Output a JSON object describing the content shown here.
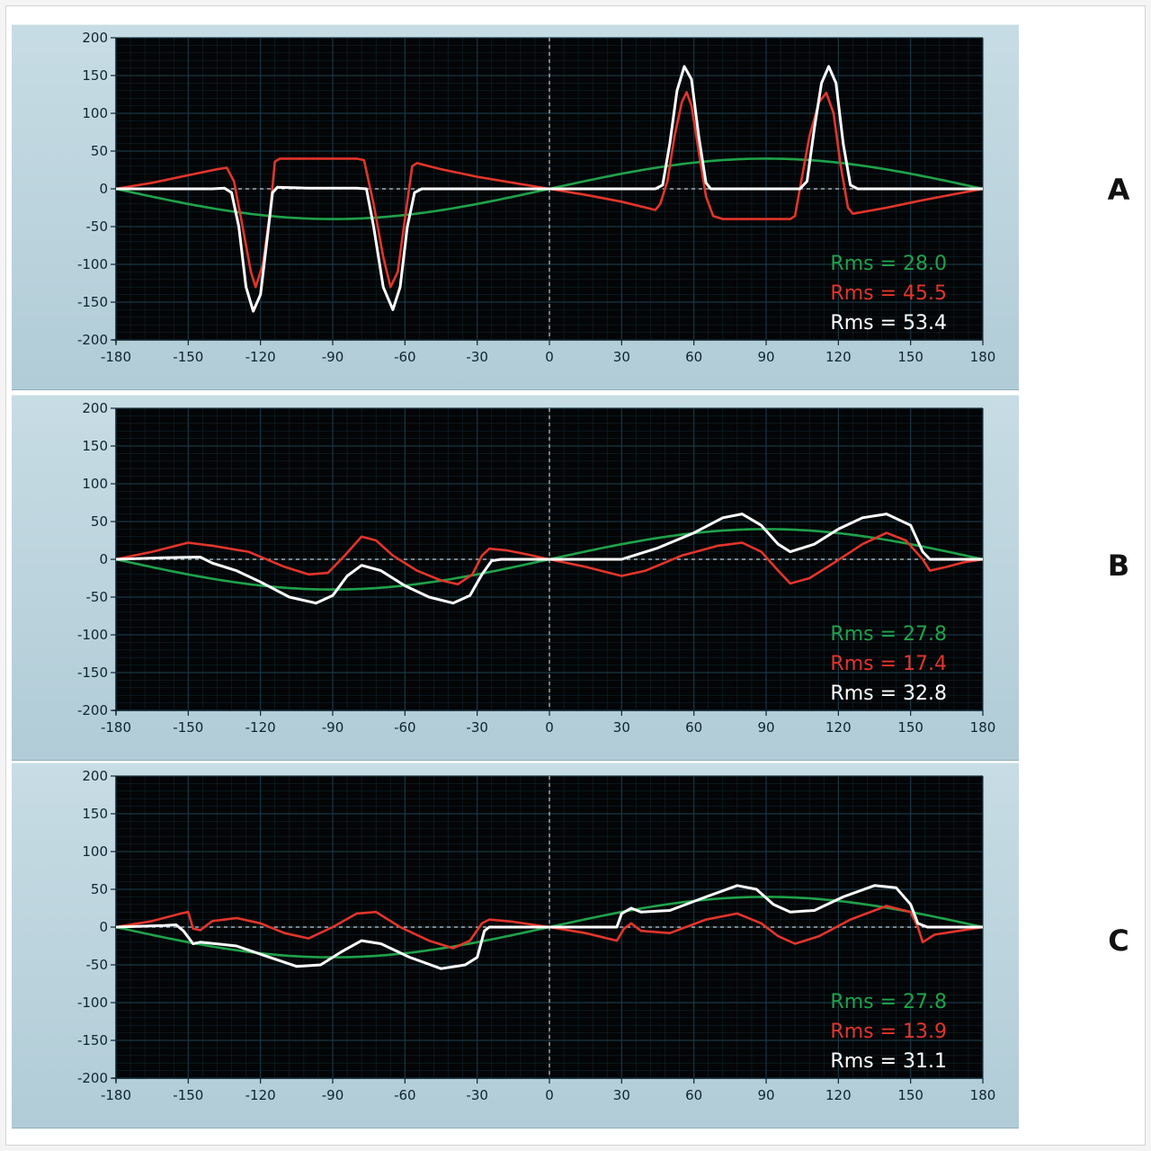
{
  "colors": {
    "page_bg": "#f4f4f4",
    "panel_bg": "#bad3dd",
    "plot_bg": "#030507",
    "grid": "#1b3a47",
    "zero_line": "#c8c8c8",
    "green": "#1fa24a",
    "red": "#e3352b",
    "white": "#ffffff"
  },
  "chart_data": [
    {
      "type": "line",
      "panel_label": "A",
      "xlim": [
        -180,
        180
      ],
      "ylim": [
        -200,
        200
      ],
      "x_ticks": [
        -180,
        -150,
        -120,
        -90,
        -60,
        -30,
        0,
        30,
        60,
        90,
        120,
        150,
        180
      ],
      "y_ticks": [
        200,
        150,
        100,
        50,
        0,
        -50,
        -100,
        -150,
        -200
      ],
      "grid": true,
      "reference_lines": [
        "y=0 dashed",
        "x=0 dashed"
      ],
      "series": [
        {
          "color": "green",
          "shape": "sine",
          "amplitude": 40,
          "legend": "Rms = 28.0"
        },
        {
          "color": "red",
          "legend": "Rms = 45.5",
          "points": [
            [
              -180,
              0
            ],
            [
              -165,
              8
            ],
            [
              -150,
              18
            ],
            [
              -138,
              26
            ],
            [
              -134,
              28
            ],
            [
              -131,
              10
            ],
            [
              -128,
              -40
            ],
            [
              -124,
              -110
            ],
            [
              -122,
              -130
            ],
            [
              -119,
              -100
            ],
            [
              -116,
              -30
            ],
            [
              -114,
              36
            ],
            [
              -112,
              40
            ],
            [
              -100,
              40
            ],
            [
              -80,
              40
            ],
            [
              -77,
              38
            ],
            [
              -73,
              -20
            ],
            [
              -69,
              -90
            ],
            [
              -66,
              -130
            ],
            [
              -63,
              -110
            ],
            [
              -60,
              -40
            ],
            [
              -57,
              30
            ],
            [
              -55,
              34
            ],
            [
              -45,
              26
            ],
            [
              -30,
              16
            ],
            [
              -15,
              8
            ],
            [
              0,
              0
            ],
            [
              15,
              -8
            ],
            [
              30,
              -17
            ],
            [
              44,
              -28
            ],
            [
              46,
              -20
            ],
            [
              49,
              10
            ],
            [
              52,
              70
            ],
            [
              55,
              115
            ],
            [
              57,
              128
            ],
            [
              59,
              110
            ],
            [
              62,
              50
            ],
            [
              65,
              -10
            ],
            [
              68,
              -36
            ],
            [
              72,
              -40
            ],
            [
              90,
              -40
            ],
            [
              100,
              -40
            ],
            [
              102,
              -36
            ],
            [
              104,
              0
            ],
            [
              108,
              70
            ],
            [
              112,
              115
            ],
            [
              115,
              127
            ],
            [
              118,
              100
            ],
            [
              121,
              30
            ],
            [
              124,
              -25
            ],
            [
              126,
              -33
            ],
            [
              140,
              -25
            ],
            [
              155,
              -15
            ],
            [
              170,
              -6
            ],
            [
              180,
              0
            ]
          ]
        },
        {
          "color": "white",
          "legend": "Rms = 53.4",
          "points": [
            [
              -180,
              0
            ],
            [
              -140,
              0
            ],
            [
              -135,
              1
            ],
            [
              -132,
              -5
            ],
            [
              -129,
              -50
            ],
            [
              -126,
              -130
            ],
            [
              -123,
              -162
            ],
            [
              -120,
              -140
            ],
            [
              -117,
              -60
            ],
            [
              -115,
              -5
            ],
            [
              -113,
              2
            ],
            [
              -100,
              1
            ],
            [
              -80,
              1
            ],
            [
              -76,
              0
            ],
            [
              -73,
              -50
            ],
            [
              -69,
              -130
            ],
            [
              -65,
              -160
            ],
            [
              -62,
              -130
            ],
            [
              -59,
              -50
            ],
            [
              -56,
              -5
            ],
            [
              -53,
              0
            ],
            [
              -30,
              0
            ],
            [
              0,
              0
            ],
            [
              30,
              0
            ],
            [
              44,
              0
            ],
            [
              47,
              5
            ],
            [
              50,
              60
            ],
            [
              53,
              130
            ],
            [
              56,
              162
            ],
            [
              59,
              145
            ],
            [
              62,
              70
            ],
            [
              65,
              8
            ],
            [
              67,
              0
            ],
            [
              95,
              0
            ],
            [
              104,
              0
            ],
            [
              107,
              10
            ],
            [
              110,
              80
            ],
            [
              113,
              140
            ],
            [
              116,
              162
            ],
            [
              119,
              140
            ],
            [
              122,
              60
            ],
            [
              125,
              5
            ],
            [
              128,
              0
            ],
            [
              180,
              0
            ]
          ]
        }
      ]
    },
    {
      "type": "line",
      "panel_label": "B",
      "xlim": [
        -180,
        180
      ],
      "ylim": [
        -200,
        200
      ],
      "x_ticks": [
        -180,
        -150,
        -120,
        -90,
        -60,
        -30,
        0,
        30,
        60,
        90,
        120,
        150,
        180
      ],
      "y_ticks": [
        200,
        150,
        100,
        50,
        0,
        -50,
        -100,
        -150,
        -200
      ],
      "grid": true,
      "reference_lines": [
        "y=0 dashed",
        "x=0 dashed"
      ],
      "series": [
        {
          "color": "green",
          "shape": "sine",
          "amplitude": 40,
          "legend": "Rms = 27.8"
        },
        {
          "color": "red",
          "legend": "Rms = 17.4",
          "points": [
            [
              -180,
              0
            ],
            [
              -165,
              10
            ],
            [
              -150,
              22
            ],
            [
              -140,
              18
            ],
            [
              -125,
              10
            ],
            [
              -110,
              -10
            ],
            [
              -100,
              -20
            ],
            [
              -92,
              -18
            ],
            [
              -85,
              5
            ],
            [
              -78,
              30
            ],
            [
              -72,
              25
            ],
            [
              -65,
              5
            ],
            [
              -55,
              -15
            ],
            [
              -45,
              -28
            ],
            [
              -38,
              -33
            ],
            [
              -32,
              -20
            ],
            [
              -28,
              5
            ],
            [
              -25,
              14
            ],
            [
              -18,
              12
            ],
            [
              -10,
              7
            ],
            [
              0,
              0
            ],
            [
              15,
              -10
            ],
            [
              30,
              -22
            ],
            [
              40,
              -15
            ],
            [
              55,
              5
            ],
            [
              70,
              18
            ],
            [
              80,
              22
            ],
            [
              88,
              10
            ],
            [
              95,
              -15
            ],
            [
              100,
              -32
            ],
            [
              108,
              -25
            ],
            [
              118,
              -5
            ],
            [
              130,
              20
            ],
            [
              140,
              35
            ],
            [
              148,
              25
            ],
            [
              155,
              0
            ],
            [
              158,
              -15
            ],
            [
              165,
              -10
            ],
            [
              172,
              -4
            ],
            [
              180,
              0
            ]
          ]
        },
        {
          "color": "white",
          "legend": "Rms = 32.8",
          "points": [
            [
              -180,
              0
            ],
            [
              -160,
              2
            ],
            [
              -145,
              3
            ],
            [
              -140,
              -5
            ],
            [
              -130,
              -15
            ],
            [
              -120,
              -30
            ],
            [
              -108,
              -50
            ],
            [
              -97,
              -58
            ],
            [
              -90,
              -48
            ],
            [
              -84,
              -22
            ],
            [
              -78,
              -8
            ],
            [
              -70,
              -15
            ],
            [
              -60,
              -35
            ],
            [
              -50,
              -50
            ],
            [
              -40,
              -58
            ],
            [
              -33,
              -48
            ],
            [
              -28,
              -20
            ],
            [
              -24,
              -2
            ],
            [
              -20,
              0
            ],
            [
              0,
              0
            ],
            [
              30,
              0
            ],
            [
              35,
              5
            ],
            [
              45,
              15
            ],
            [
              60,
              35
            ],
            [
              72,
              55
            ],
            [
              80,
              60
            ],
            [
              88,
              45
            ],
            [
              95,
              20
            ],
            [
              100,
              10
            ],
            [
              110,
              20
            ],
            [
              120,
              40
            ],
            [
              130,
              55
            ],
            [
              140,
              60
            ],
            [
              150,
              45
            ],
            [
              155,
              10
            ],
            [
              158,
              0
            ],
            [
              180,
              0
            ]
          ]
        }
      ]
    },
    {
      "type": "line",
      "panel_label": "C",
      "xlim": [
        -180,
        180
      ],
      "ylim": [
        -200,
        200
      ],
      "x_ticks": [
        -180,
        -150,
        -120,
        -90,
        -60,
        -30,
        0,
        30,
        60,
        90,
        120,
        150,
        180
      ],
      "y_ticks": [
        200,
        150,
        100,
        50,
        0,
        -50,
        -100,
        -150,
        -200
      ],
      "grid": true,
      "reference_lines": [
        "y=0 dashed",
        "x=0 dashed"
      ],
      "series": [
        {
          "color": "green",
          "shape": "sine",
          "amplitude": 40,
          "legend": "Rms = 27.8"
        },
        {
          "color": "red",
          "legend": "Rms = 13.9",
          "points": [
            [
              -180,
              0
            ],
            [
              -165,
              8
            ],
            [
              -153,
              18
            ],
            [
              -150,
              20
            ],
            [
              -148,
              -2
            ],
            [
              -145,
              -4
            ],
            [
              -140,
              8
            ],
            [
              -130,
              12
            ],
            [
              -120,
              5
            ],
            [
              -110,
              -8
            ],
            [
              -100,
              -15
            ],
            [
              -90,
              0
            ],
            [
              -80,
              18
            ],
            [
              -72,
              20
            ],
            [
              -62,
              0
            ],
            [
              -50,
              -18
            ],
            [
              -40,
              -28
            ],
            [
              -33,
              -18
            ],
            [
              -28,
              5
            ],
            [
              -25,
              10
            ],
            [
              -15,
              7
            ],
            [
              0,
              0
            ],
            [
              15,
              -8
            ],
            [
              28,
              -18
            ],
            [
              31,
              -2
            ],
            [
              34,
              5
            ],
            [
              38,
              -5
            ],
            [
              50,
              -8
            ],
            [
              65,
              10
            ],
            [
              78,
              18
            ],
            [
              88,
              5
            ],
            [
              95,
              -12
            ],
            [
              102,
              -22
            ],
            [
              112,
              -12
            ],
            [
              125,
              10
            ],
            [
              140,
              28
            ],
            [
              150,
              20
            ],
            [
              153,
              0
            ],
            [
              155,
              -20
            ],
            [
              160,
              -10
            ],
            [
              170,
              -5
            ],
            [
              180,
              0
            ]
          ]
        },
        {
          "color": "white",
          "legend": "Rms = 31.1",
          "points": [
            [
              -180,
              0
            ],
            [
              -160,
              2
            ],
            [
              -155,
              3
            ],
            [
              -152,
              -5
            ],
            [
              -148,
              -22
            ],
            [
              -145,
              -20
            ],
            [
              -130,
              -25
            ],
            [
              -118,
              -38
            ],
            [
              -105,
              -52
            ],
            [
              -95,
              -50
            ],
            [
              -86,
              -32
            ],
            [
              -78,
              -18
            ],
            [
              -70,
              -22
            ],
            [
              -58,
              -40
            ],
            [
              -45,
              -55
            ],
            [
              -35,
              -50
            ],
            [
              -30,
              -40
            ],
            [
              -27,
              -5
            ],
            [
              -25,
              0
            ],
            [
              0,
              0
            ],
            [
              28,
              0
            ],
            [
              30,
              18
            ],
            [
              34,
              25
            ],
            [
              38,
              20
            ],
            [
              50,
              22
            ],
            [
              65,
              40
            ],
            [
              78,
              55
            ],
            [
              86,
              50
            ],
            [
              93,
              30
            ],
            [
              100,
              20
            ],
            [
              110,
              22
            ],
            [
              122,
              40
            ],
            [
              135,
              55
            ],
            [
              144,
              52
            ],
            [
              150,
              30
            ],
            [
              153,
              5
            ],
            [
              157,
              0
            ],
            [
              180,
              0
            ]
          ]
        }
      ]
    }
  ]
}
